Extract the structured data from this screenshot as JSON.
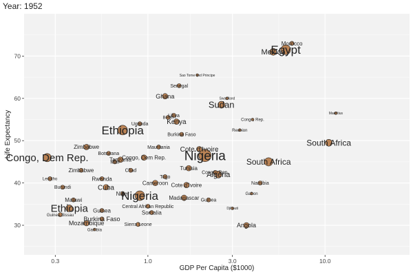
{
  "chart_data": {
    "type": "scatter",
    "title": "Year: 1952",
    "xlabel": "GDP Per Capita ($1000)",
    "ylabel": "Life Expectancy",
    "x_scale": "log",
    "xlim": [
      0.2,
      30
    ],
    "ylim": [
      23,
      80
    ],
    "x_ticks": [
      0.3,
      1.0,
      3.0,
      10.0
    ],
    "x_tick_labels": [
      "0.3",
      "1.0",
      "3.0",
      "10.0"
    ],
    "y_ticks": [
      30,
      40,
      50,
      60,
      70
    ],
    "y_tick_labels": [
      "30",
      "40",
      "50",
      "60",
      "70"
    ],
    "grid": true,
    "point_color": "#b0703a",
    "panel_background": "#f2f2f2",
    "points": [
      {
        "label": "Egypt",
        "x": 6.0,
        "y": 71.5,
        "size": 7,
        "label_size": 17
      },
      {
        "label": "Mexico",
        "x": 5.1,
        "y": 71.0,
        "size": 5,
        "label_size": 11
      },
      {
        "label": "Sudan",
        "x": 2.6,
        "y": 58.5,
        "size": 5,
        "label_size": 13
      },
      {
        "label": "Ghana",
        "x": 1.25,
        "y": 60.5,
        "size": 4,
        "label_size": 9
      },
      {
        "label": "Ethiopia",
        "x": 0.72,
        "y": 52.5,
        "size": 7,
        "label_size": 17
      },
      {
        "label": "Kenya",
        "x": 1.45,
        "y": 54.5,
        "size": 4,
        "label_size": 10
      },
      {
        "label": "Nigeria",
        "x": 2.1,
        "y": 46.5,
        "size": 9,
        "label_size": 19
      },
      {
        "label": "South Africa",
        "x": 4.8,
        "y": 45.0,
        "size": 6,
        "label_size": 12
      },
      {
        "label": "South Africa",
        "x": 10.5,
        "y": 49.5,
        "size": 5,
        "label_size": 12
      },
      {
        "label": "Algeria",
        "x": 2.5,
        "y": 42.0,
        "size": 5,
        "label_size": 11
      },
      {
        "label": "Angola",
        "x": 3.6,
        "y": 30.0,
        "size": 4,
        "label_size": 9
      },
      {
        "label": "Somalia",
        "x": 1.05,
        "y": 33.0,
        "size": 3,
        "label_size": 8
      },
      {
        "label": "Sierra Leone",
        "x": 0.88,
        "y": 30.2,
        "size": 3,
        "label_size": 7
      },
      {
        "label": "Burkina Faso",
        "x": 0.55,
        "y": 31.5,
        "size": 3,
        "label_size": 9
      },
      {
        "label": "Mozambique",
        "x": 0.45,
        "y": 30.5,
        "size": 4,
        "label_size": 9
      },
      {
        "label": "Malawi",
        "x": 0.38,
        "y": 36.0,
        "size": 3,
        "label_size": 8
      },
      {
        "label": "Ethiopia",
        "x": 0.36,
        "y": 34.0,
        "size": 5,
        "label_size": 15
      },
      {
        "label": "Guinea",
        "x": 0.55,
        "y": 33.5,
        "size": 3,
        "label_size": 8
      },
      {
        "label": "Guinea-Bissau",
        "x": 0.32,
        "y": 32.5,
        "size": 3,
        "label_size": 6
      },
      {
        "label": "Gambia",
        "x": 0.5,
        "y": 29.0,
        "size": 2,
        "label_size": 6
      },
      {
        "label": "Burundi",
        "x": 0.33,
        "y": 39.0,
        "size": 3,
        "label_size": 7
      },
      {
        "label": "Rwanda",
        "x": 0.55,
        "y": 41.0,
        "size": 3,
        "label_size": 8
      },
      {
        "label": "Cuba",
        "x": 0.58,
        "y": 39.0,
        "size": 4,
        "label_size": 10
      },
      {
        "label": "Nigeria",
        "x": 0.9,
        "y": 37.0,
        "size": 7,
        "label_size": 17
      },
      {
        "label": "Niger",
        "x": 0.72,
        "y": 37.5,
        "size": 3,
        "label_size": 8
      },
      {
        "label": "Madagascar",
        "x": 1.6,
        "y": 36.5,
        "size": 4,
        "label_size": 8
      },
      {
        "label": "Cote d'Ivoire",
        "x": 1.65,
        "y": 39.5,
        "size": 4,
        "label_size": 8
      },
      {
        "label": "Tunisia",
        "x": 1.7,
        "y": 43.5,
        "size": 4,
        "label_size": 8
      },
      {
        "label": "Congo, Dem Rep.",
        "x": 0.27,
        "y": 46.0,
        "size": 6,
        "label_size": 15
      },
      {
        "label": "Zimbabwe",
        "x": 0.45,
        "y": 48.5,
        "size": 4,
        "label_size": 8
      },
      {
        "label": "Zimbabwe",
        "x": 0.42,
        "y": 43.0,
        "size": 3,
        "label_size": 8
      },
      {
        "label": "Lesotho",
        "x": 0.28,
        "y": 41.0,
        "size": 3,
        "label_size": 6
      },
      {
        "label": "Cote d'Ivoire",
        "x": 1.95,
        "y": 48.0,
        "size": 4,
        "label_size": 10
      },
      {
        "label": "Congo, Rep.",
        "x": 3.9,
        "y": 55.0,
        "size": 2,
        "label_size": 6
      },
      {
        "label": "Reunion",
        "x": 3.3,
        "y": 52.5,
        "size": 2,
        "label_size": 6
      },
      {
        "label": "Gabon",
        "x": 3.85,
        "y": 37.5,
        "size": 2,
        "label_size": 6
      },
      {
        "label": "Djibouti",
        "x": 3.0,
        "y": 34.0,
        "size": 2,
        "label_size": 5
      },
      {
        "label": "Namibia",
        "x": 4.3,
        "y": 40.0,
        "size": 3,
        "label_size": 7
      },
      {
        "label": "Senegal",
        "x": 1.5,
        "y": 63.0,
        "size": 3,
        "label_size": 7
      },
      {
        "label": "Libya",
        "x": 1.4,
        "y": 56.0,
        "size": 3,
        "label_size": 7
      },
      {
        "label": "Benin",
        "x": 1.3,
        "y": 55.5,
        "size": 3,
        "label_size": 6
      },
      {
        "label": "Uganda",
        "x": 0.9,
        "y": 54.0,
        "size": 3,
        "label_size": 7
      },
      {
        "label": "Congo, Dem Rep.",
        "x": 0.95,
        "y": 46.0,
        "size": 4,
        "label_size": 8
      },
      {
        "label": "Mali",
        "x": 0.65,
        "y": 45.0,
        "size": 3,
        "label_size": 7
      },
      {
        "label": "Chad",
        "x": 0.8,
        "y": 43.0,
        "size": 3,
        "label_size": 7
      },
      {
        "label": "Central African Republic",
        "x": 1.0,
        "y": 34.5,
        "size": 3,
        "label_size": 7
      },
      {
        "label": "Cameroon",
        "x": 1.1,
        "y": 40.0,
        "size": 4,
        "label_size": 8
      },
      {
        "label": "Togo",
        "x": 1.25,
        "y": 41.5,
        "size": 3,
        "label_size": 7
      },
      {
        "label": "Mauritania",
        "x": 1.15,
        "y": 48.5,
        "size": 3,
        "label_size": 7
      },
      {
        "label": "Burkina Faso",
        "x": 1.55,
        "y": 51.5,
        "size": 3,
        "label_size": 7
      },
      {
        "label": "Botswana",
        "x": 0.6,
        "y": 47.0,
        "size": 3,
        "label_size": 7
      },
      {
        "label": "Tanzania",
        "x": 0.7,
        "y": 45.5,
        "size": 4,
        "label_size": 8
      },
      {
        "label": "Congo, Rep.",
        "x": 2.4,
        "y": 42.5,
        "size": 3,
        "label_size": 7
      },
      {
        "label": "Guinea",
        "x": 2.2,
        "y": 36.0,
        "size": 3,
        "label_size": 7
      },
      {
        "label": "Mauritius",
        "x": 11.5,
        "y": 56.5,
        "size": 2,
        "label_size": 5
      },
      {
        "label": "Morocco",
        "x": 6.5,
        "y": 73.0,
        "size": 3,
        "label_size": 8
      },
      {
        "label": "Sao Tome and Principe",
        "x": 1.9,
        "y": 65.5,
        "size": 2,
        "label_size": 5
      },
      {
        "label": "Swaziland",
        "x": 2.8,
        "y": 60.0,
        "size": 2,
        "label_size": 5
      }
    ]
  }
}
